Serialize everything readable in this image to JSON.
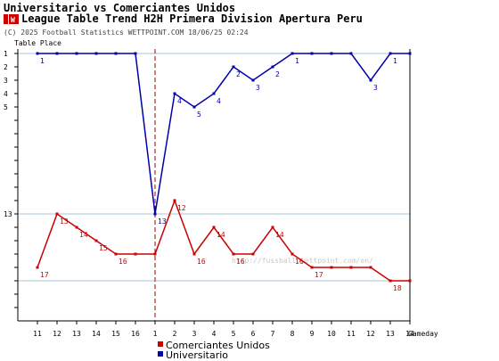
{
  "header": {
    "title": "Universitario vs Comerciantes Unidos",
    "subtitle": "League Table Trend H2H Primera Division Apertura Peru",
    "badge_glyph": "W",
    "copyright": "(C) 2025 Football Statistics WETTPOINT.COM 18/06/25 02:24",
    "watermark": "http://fussball.wettpoint.com/en/"
  },
  "colors": {
    "comerciantes": "#cc0000",
    "universitario": "#0000aa",
    "grid": "#a9c4d8",
    "separator": "#aa0000"
  },
  "chart_data": {
    "type": "line",
    "ylabel": "Table Place",
    "xlabel": "Gameday",
    "y_range": [
      1,
      20
    ],
    "y_inverted": true,
    "y_ticks": [
      "1",
      "2",
      "3",
      "4",
      "5",
      "13"
    ],
    "x_tick_labels": [
      "11",
      "12",
      "13",
      "14",
      "15",
      "16",
      "1",
      "2",
      "3",
      "4",
      "5",
      "6",
      "7",
      "8",
      "9",
      "10",
      "11",
      "12",
      "13",
      "14"
    ],
    "separator_after_index": 6,
    "series": [
      {
        "name": "Universitario",
        "color": "#0000aa",
        "values": [
          1,
          1,
          1,
          1,
          1,
          1,
          13,
          4,
          5,
          4,
          2,
          3,
          2,
          1,
          1,
          1,
          1,
          3,
          1,
          1
        ],
        "labels": [
          "1",
          "",
          "",
          "",
          "",
          "",
          "13",
          "4",
          "5",
          "4",
          "2",
          "3",
          "2",
          "1",
          "",
          "",
          "",
          "3",
          "1",
          ""
        ]
      },
      {
        "name": "Comerciantes Unidos",
        "color": "#cc0000",
        "values": [
          17,
          13,
          14,
          15,
          16,
          16,
          16,
          12,
          16,
          14,
          16,
          16,
          14,
          16,
          17,
          17,
          17,
          17,
          18,
          18
        ],
        "labels": [
          "17",
          "13",
          "14",
          "15",
          "16",
          "",
          "",
          "12",
          "16",
          "14",
          "16",
          "",
          "14",
          "16",
          "17",
          "",
          "",
          "",
          "18",
          ""
        ]
      }
    ],
    "legend": [
      {
        "label": "Comerciantes Unidos",
        "color": "#cc0000"
      },
      {
        "label": "Universitario",
        "color": "#0000aa"
      }
    ]
  }
}
